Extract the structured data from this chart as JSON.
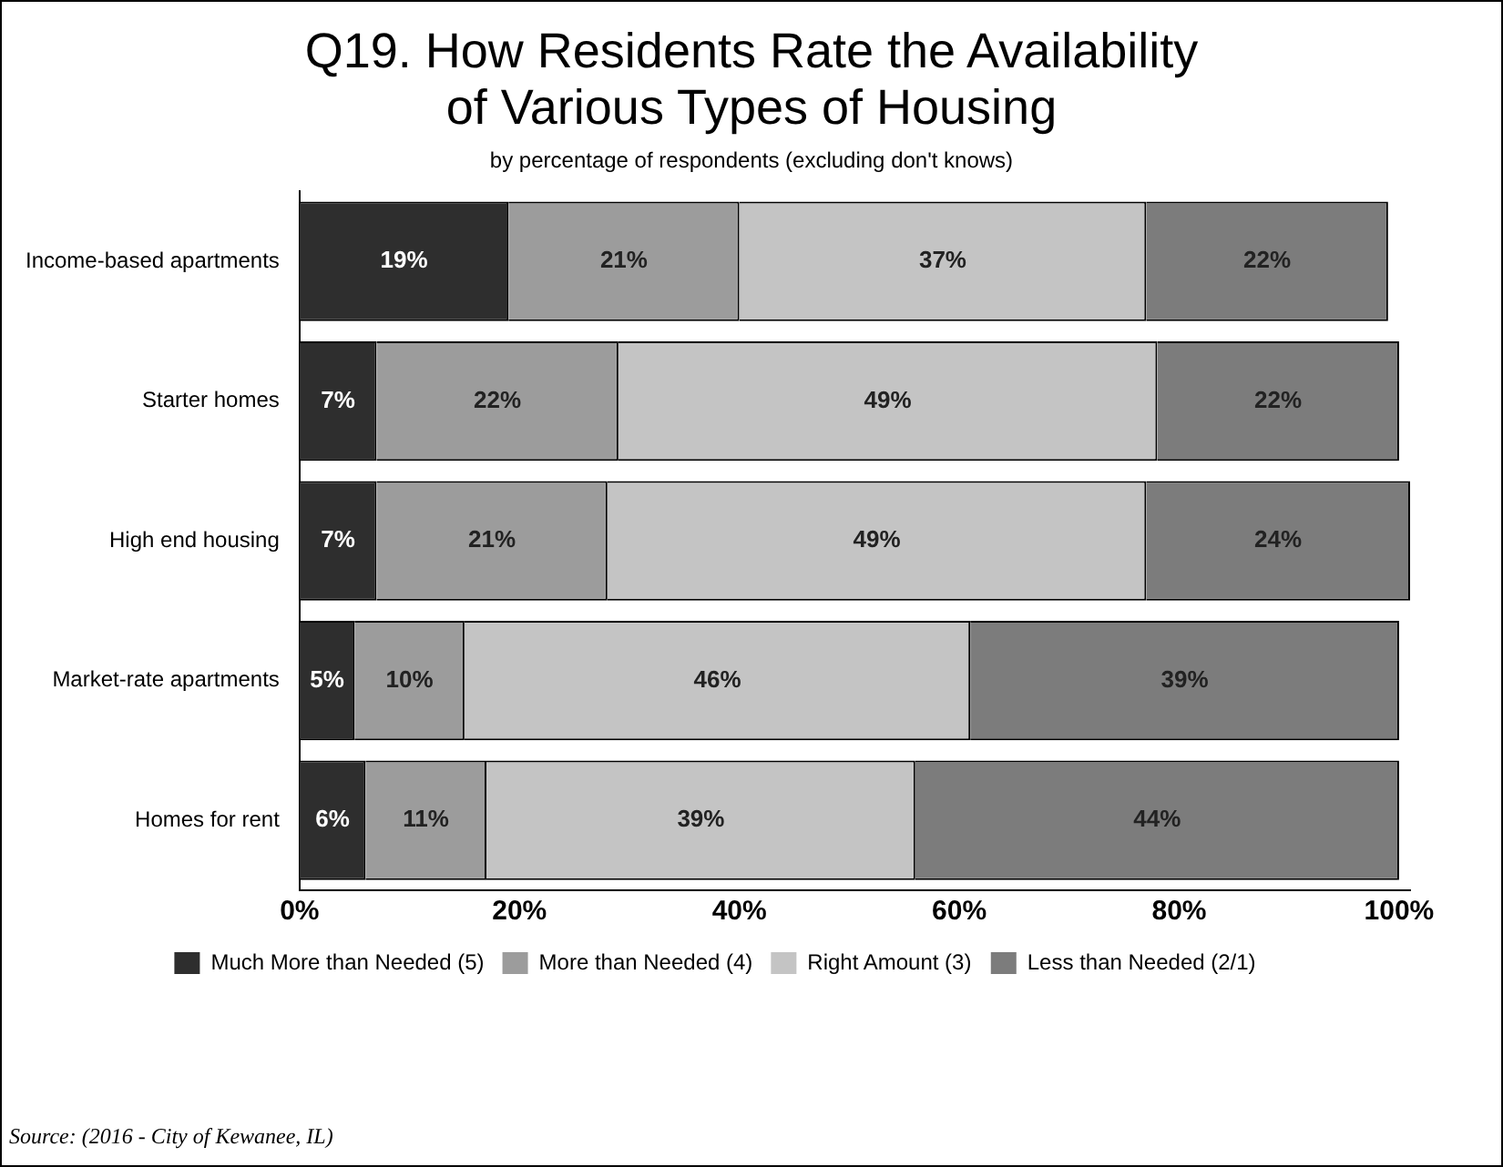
{
  "chart_data": {
    "type": "bar",
    "orientation": "horizontal",
    "stacked": true,
    "title": "Q19. How Residents Rate the Availability of Various Types of Housing",
    "subtitle": "by percentage of respondents (excluding don't knows)",
    "categories": [
      "Income-based apartments",
      "Starter homes",
      "High end housing",
      "Market-rate apartments",
      "Homes for rent"
    ],
    "series": [
      {
        "name": "Much More than Needed (5)",
        "color": "#2e2e2e",
        "values": [
          19,
          7,
          7,
          5,
          6
        ]
      },
      {
        "name": "More than Needed (4)",
        "color": "#9c9c9c",
        "values": [
          21,
          22,
          21,
          10,
          11
        ]
      },
      {
        "name": "Right Amount (3)",
        "color": "#c4c4c4",
        "values": [
          37,
          49,
          49,
          46,
          39
        ]
      },
      {
        "name": "Less than Needed (2/1)",
        "color": "#7c7c7c",
        "values": [
          22,
          22,
          24,
          39,
          44
        ]
      }
    ],
    "xlim": [
      0,
      101
    ],
    "xticks": [
      {
        "value": 0,
        "label": "0%"
      },
      {
        "value": 20,
        "label": "20%"
      },
      {
        "value": 40,
        "label": "40%"
      },
      {
        "value": 60,
        "label": "60%"
      },
      {
        "value": 80,
        "label": "80%"
      },
      {
        "value": 100,
        "label": "100%"
      }
    ],
    "grid": false,
    "legend": "bottom",
    "value_labels": [
      [
        "19%",
        "7%",
        "7%",
        "5%",
        "6%"
      ],
      [
        "21%",
        "22%",
        "21%",
        "10%",
        "11%"
      ],
      [
        "37%",
        "49%",
        "49%",
        "46%",
        "39%"
      ],
      [
        "22%",
        "22%",
        "24%",
        "39%",
        "44%"
      ]
    ],
    "annotations": [
      "Source: (2016 - City of Kewanee, IL)"
    ]
  }
}
